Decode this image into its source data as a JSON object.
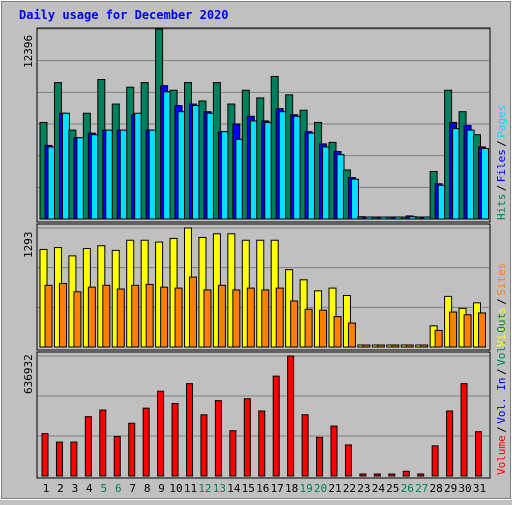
{
  "title": "Daily usage for December 2020",
  "colors": {
    "background": "#c0c0c0",
    "panel": "#c0c0c0",
    "title": "#0000ff",
    "hits": "#00805c",
    "files": "#0000ff",
    "pages": "#00e0ff",
    "visits": "#ffff00",
    "sites": "#ff8000",
    "volume": "#ff0000",
    "vol_in": "#0000ff",
    "vol_out": "#00805c",
    "weekend_day": "#00805c",
    "weekday": "#000000",
    "separator": "#000000"
  },
  "legend": {
    "top": [
      "Hits",
      "Files",
      "Pages"
    ],
    "middle": [
      "Visits",
      "Sites"
    ],
    "bottom": [
      "Volume",
      "Vol. In",
      "Vol. Out"
    ],
    "separator": "/"
  },
  "axis_max_labels": {
    "top": "12396",
    "middle": "1293",
    "bottom": "636932"
  },
  "day_labels": [
    "1",
    "2",
    "3",
    "4",
    "5",
    "6",
    "7",
    "8",
    "9",
    "10",
    "11",
    "12",
    "13",
    "14",
    "15",
    "16",
    "17",
    "18",
    "19",
    "20",
    "21",
    "22",
    "23",
    "24",
    "25",
    "26",
    "27",
    "28",
    "29",
    "30",
    "31"
  ],
  "weekend_days": [
    5,
    6,
    12,
    13,
    19,
    20,
    26,
    27
  ],
  "chart_data": [
    {
      "type": "bar",
      "panel": "top",
      "ymax": 12396,
      "x": [
        1,
        2,
        3,
        4,
        5,
        6,
        7,
        8,
        9,
        10,
        11,
        12,
        13,
        14,
        15,
        16,
        17,
        18,
        19,
        20,
        21,
        22,
        23,
        24,
        25,
        26,
        27,
        28,
        29,
        30,
        31
      ],
      "series": [
        {
          "name": "Hits",
          "values": [
            6300,
            8900,
            5800,
            6900,
            9100,
            7500,
            8600,
            8900,
            12396,
            8400,
            8900,
            7700,
            8900,
            7500,
            8400,
            7900,
            9300,
            8100,
            7100,
            6300,
            5000,
            3200,
            150,
            50,
            60,
            120,
            60,
            3100,
            8400,
            7000,
            5500
          ]
        },
        {
          "name": "Files",
          "values": [
            4800,
            6900,
            5300,
            5600,
            5800,
            5800,
            6800,
            5800,
            8700,
            7400,
            7500,
            7000,
            5700,
            6200,
            6700,
            6400,
            7200,
            6800,
            5700,
            4900,
            4400,
            2700,
            120,
            40,
            50,
            200,
            50,
            2300,
            6300,
            6100,
            4700
          ]
        },
        {
          "name": "Pages",
          "values": [
            4700,
            6900,
            5300,
            5500,
            5800,
            5800,
            6900,
            5800,
            8300,
            7000,
            7400,
            6900,
            5700,
            5200,
            6400,
            6300,
            7000,
            6700,
            5600,
            4700,
            4200,
            2600,
            100,
            30,
            40,
            150,
            40,
            2200,
            5900,
            5800,
            4600
          ]
        }
      ]
    },
    {
      "type": "bar",
      "panel": "middle",
      "ymax": 1293,
      "x": [
        1,
        2,
        3,
        4,
        5,
        6,
        7,
        8,
        9,
        10,
        11,
        12,
        13,
        14,
        15,
        16,
        17,
        18,
        19,
        20,
        21,
        22,
        23,
        24,
        25,
        26,
        27,
        28,
        29,
        30,
        31
      ],
      "series": [
        {
          "name": "Visits",
          "values": [
            1060,
            1080,
            990,
            1070,
            1100,
            1050,
            1160,
            1160,
            1140,
            1180,
            1293,
            1190,
            1230,
            1230,
            1160,
            1160,
            1160,
            840,
            730,
            610,
            640,
            560,
            20,
            10,
            15,
            20,
            15,
            230,
            550,
            420,
            480
          ]
        },
        {
          "name": "Sites",
          "values": [
            670,
            690,
            600,
            650,
            670,
            630,
            670,
            680,
            650,
            640,
            760,
            620,
            670,
            620,
            640,
            620,
            640,
            500,
            410,
            400,
            330,
            260,
            20,
            10,
            15,
            15,
            10,
            180,
            380,
            350,
            370
          ]
        }
      ]
    },
    {
      "type": "bar",
      "panel": "bottom",
      "ymax": 636932,
      "x": [
        1,
        2,
        3,
        4,
        5,
        6,
        7,
        8,
        9,
        10,
        11,
        12,
        13,
        14,
        15,
        16,
        17,
        18,
        19,
        20,
        21,
        22,
        23,
        24,
        25,
        26,
        27,
        28,
        29,
        30,
        31
      ],
      "series": [
        {
          "name": "Volume",
          "values": [
            225000,
            180000,
            180000,
            315000,
            350000,
            210000,
            280000,
            360000,
            450000,
            385000,
            490000,
            325000,
            400000,
            240000,
            410000,
            345000,
            530000,
            636932,
            325000,
            205000,
            265000,
            165000,
            5000,
            3000,
            4000,
            25000,
            3000,
            160000,
            345000,
            490000,
            235000
          ]
        },
        {
          "name": "Vol. In",
          "values": [
            0,
            0,
            0,
            0,
            0,
            0,
            0,
            0,
            0,
            0,
            0,
            0,
            0,
            0,
            0,
            0,
            0,
            0,
            0,
            0,
            0,
            0,
            0,
            0,
            0,
            0,
            0,
            0,
            0,
            0,
            0
          ]
        },
        {
          "name": "Vol. Out",
          "values": [
            0,
            0,
            0,
            0,
            0,
            0,
            0,
            0,
            0,
            0,
            0,
            0,
            0,
            0,
            0,
            0,
            0,
            0,
            0,
            0,
            0,
            0,
            0,
            0,
            0,
            0,
            0,
            0,
            0,
            0,
            0
          ]
        }
      ]
    }
  ]
}
